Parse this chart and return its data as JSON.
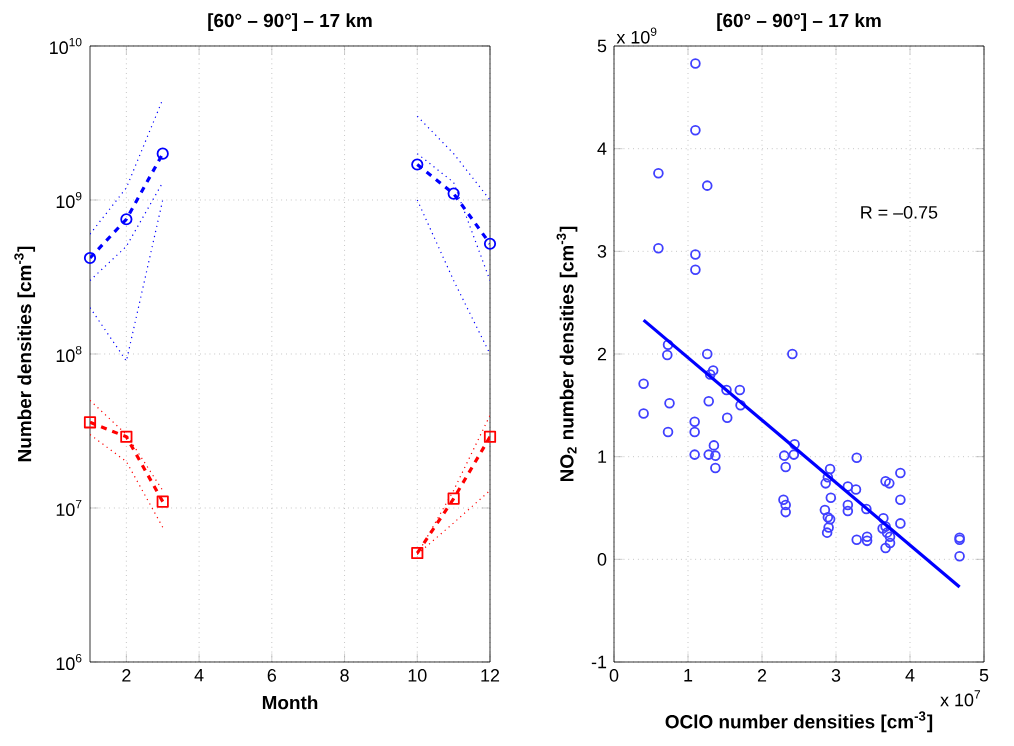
{
  "chart_data": [
    {
      "type": "line",
      "title": "[60° – 90°] – 17 km",
      "xlabel": "Month",
      "ylabel": "Number densities [cm$^{-3}$]",
      "log": "y",
      "grid": true,
      "xlim": [
        1,
        12
      ],
      "xticks": [
        2,
        4,
        6,
        8,
        10,
        12
      ],
      "ylim": [
        1000000,
        10000000000
      ],
      "yticks": [
        {
          "value": 1000000,
          "label": "10$^{6}$"
        },
        {
          "value": 10000000,
          "label": "10$^{7}$"
        },
        {
          "value": 100000000,
          "label": "10$^{8}$"
        },
        {
          "value": 1000000000,
          "label": "10$^{9}$"
        },
        {
          "value": 10000000000,
          "label": "10$^{10}$"
        }
      ],
      "x": [
        1,
        2,
        3,
        4,
        5,
        6,
        7,
        8,
        9,
        10,
        11,
        12
      ],
      "series": [
        {
          "color": "#0000ff",
          "line_style": "dotted",
          "marker": "none",
          "x": [
            1,
            2,
            3
          ],
          "values": [
            600000000,
            1200000000,
            4500000000
          ]
        },
        {
          "color": "#0000ff",
          "line_style": "dotted",
          "marker": "none",
          "x": [
            1,
            2,
            3
          ],
          "values": [
            200000000,
            90000000,
            1000000000
          ]
        },
        {
          "color": "#0000ff",
          "line_style": "dotted",
          "marker": "none",
          "x": [
            1,
            2,
            3
          ],
          "values": [
            300000000,
            500000000,
            1300000000
          ]
        },
        {
          "color": "#0000ff",
          "line_style": "dotted",
          "marker": "none",
          "x": [
            10,
            11,
            12
          ],
          "values": [
            3500000000,
            2000000000,
            1000000000
          ]
        },
        {
          "color": "#0000ff",
          "line_style": "dotted",
          "marker": "none",
          "x": [
            10,
            11,
            12
          ],
          "values": [
            1000000000,
            300000000,
            100000000
          ]
        },
        {
          "color": "#0000ff",
          "line_style": "dotted",
          "marker": "none",
          "x": [
            10,
            11,
            12
          ],
          "values": [
            2000000000,
            1300000000,
            300000000
          ]
        },
        {
          "color": "#ff0000",
          "line_style": "dotted",
          "marker": "none",
          "x": [
            1,
            2,
            3
          ],
          "values": [
            50000000,
            30000000,
            13000000
          ]
        },
        {
          "color": "#ff0000",
          "line_style": "dotted",
          "marker": "none",
          "x": [
            1,
            2,
            3
          ],
          "values": [
            30000000,
            20000000,
            7500000
          ]
        },
        {
          "color": "#ff0000",
          "line_style": "dotted",
          "marker": "none",
          "x": [
            10,
            11,
            12
          ],
          "values": [
            5000000,
            13000000,
            40000000
          ]
        },
        {
          "color": "#ff0000",
          "line_style": "dotted",
          "marker": "none",
          "x": [
            10,
            11,
            12
          ],
          "values": [
            5000000,
            8000000,
            13000000
          ]
        },
        {
          "color": "#0000ff",
          "line_style": "dashed",
          "marker": "circle",
          "values": [
            420000000,
            750000000,
            2000000000,
            null,
            null,
            null,
            null,
            null,
            null,
            1700000000,
            1100000000,
            520000000
          ]
        },
        {
          "color": "#ff0000",
          "line_style": "dashed",
          "marker": "square",
          "values": [
            36000000,
            29000000,
            11000000,
            null,
            null,
            null,
            null,
            null,
            null,
            5100000,
            11500000,
            29000000
          ]
        }
      ]
    },
    {
      "type": "scatter",
      "title": "[60° – 90°] – 17 km",
      "xlabel": "OClO number densities [cm$^{-3}$]",
      "ylabel": "NO$_{2}$ number densities [cm$^{-3}$]",
      "grid": true,
      "xlim": [
        0,
        5
      ],
      "xticks": [
        0,
        1,
        2,
        3,
        4,
        5
      ],
      "ylim": [
        -1,
        5
      ],
      "yticks": [
        -1,
        0,
        1,
        2,
        3,
        4,
        5
      ],
      "annotations": [
        "R = –0.75",
        "x 10$^{9}$",
        "x 10$^{7}$"
      ],
      "series": [
        {
          "type": "scatter",
          "color": "#4040ff",
          "marker": "circle",
          "x": [
            1.1,
            1.1,
            0.6,
            1.26,
            0.6,
            1.1,
            1.1,
            0.73,
            0.72,
            1.26,
            2.41,
            1.34,
            1.3,
            1.7,
            0.4,
            0.4,
            0.75,
            0.73,
            1.09,
            1.09,
            1.09,
            1.28,
            1.37,
            1.35,
            1.37,
            1.28,
            1.53,
            1.52,
            1.71,
            2.3,
            2.32,
            2.44,
            2.43,
            2.29,
            2.32,
            2.32,
            2.92,
            2.89,
            2.86,
            2.93,
            2.85,
            2.89,
            2.92,
            2.9,
            2.88,
            3.28,
            3.16,
            3.27,
            3.16,
            3.16,
            3.28,
            3.41,
            3.42,
            3.42,
            3.67,
            3.72,
            3.64,
            3.67,
            3.63,
            3.69,
            3.73,
            3.73,
            3.67,
            3.87,
            3.87,
            3.87,
            4.67,
            4.67,
            4.67
          ],
          "values": [
            4.83,
            4.18,
            3.76,
            3.64,
            3.03,
            2.97,
            2.82,
            2.09,
            1.99,
            2.0,
            2.0,
            1.84,
            1.8,
            1.65,
            1.71,
            1.42,
            1.52,
            1.24,
            1.34,
            1.24,
            1.02,
            1.02,
            1.01,
            1.11,
            0.89,
            1.54,
            1.38,
            1.65,
            1.5,
            1.01,
            0.9,
            1.12,
            1.02,
            0.58,
            0.53,
            0.46,
            0.88,
            0.8,
            0.74,
            0.6,
            0.48,
            0.41,
            0.39,
            0.31,
            0.26,
            0.99,
            0.71,
            0.68,
            0.53,
            0.47,
            0.19,
            0.49,
            0.22,
            0.18,
            0.76,
            0.74,
            0.4,
            0.32,
            0.3,
            0.26,
            0.22,
            0.16,
            0.11,
            0.84,
            0.58,
            0.35,
            0.21,
            0.19,
            0.03
          ]
        },
        {
          "type": "line",
          "color": "#0000ff",
          "line_style": "solid",
          "marker": "none",
          "x": [
            0.4,
            4.67
          ],
          "values": [
            2.33,
            -0.27
          ]
        }
      ]
    }
  ]
}
